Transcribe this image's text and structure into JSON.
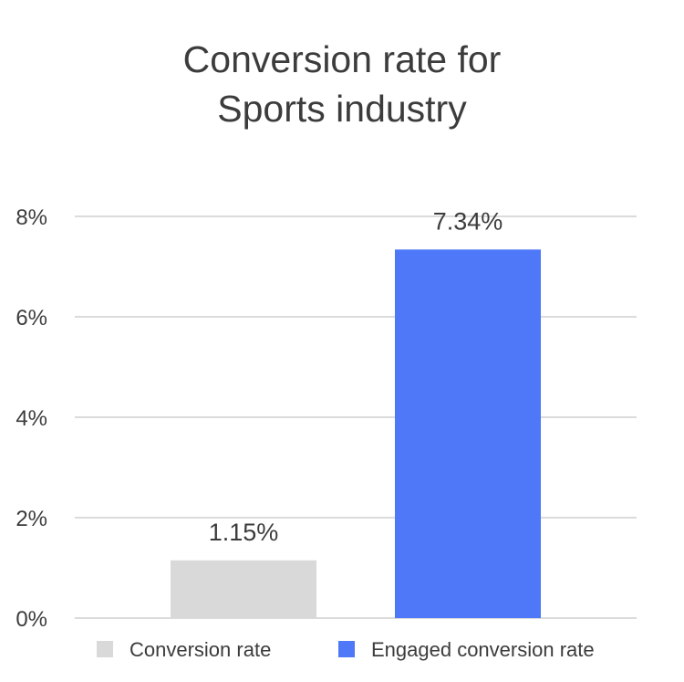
{
  "chart_data": {
    "type": "bar",
    "title_lines": [
      "Conversion rate for",
      "Sports industry"
    ],
    "categories": [
      "Conversion rate",
      "Engaged conversion rate"
    ],
    "values": [
      1.15,
      7.34
    ],
    "data_labels": [
      "1.15%",
      "7.34%"
    ],
    "colors": [
      "#d9d9d9",
      "#4e78f7"
    ],
    "ylim": [
      0,
      8
    ],
    "yticks": [
      0,
      2,
      4,
      6,
      8
    ],
    "ytick_labels": [
      "0%",
      "2%",
      "4%",
      "6%",
      "8%"
    ],
    "grid": true,
    "grid_color": "#cfcfcf",
    "legend": {
      "placement": "bottom",
      "entries": [
        "Conversion rate",
        "Engaged conversion rate"
      ]
    },
    "xlabel": "",
    "ylabel": ""
  }
}
